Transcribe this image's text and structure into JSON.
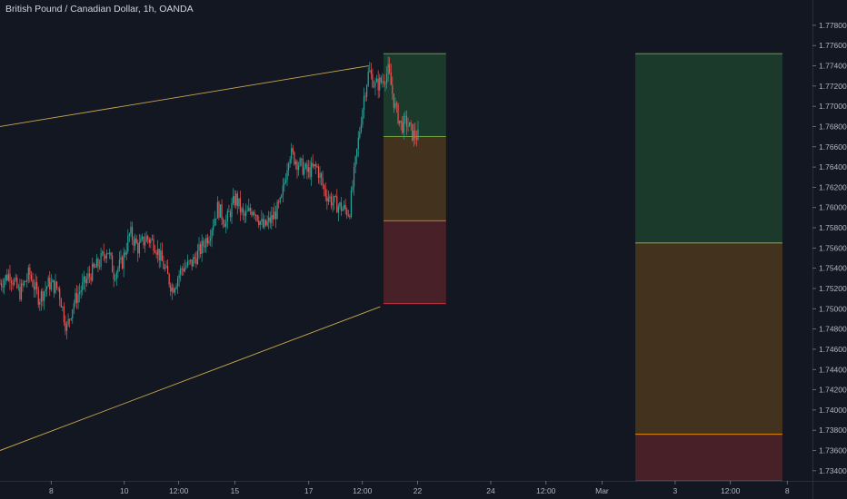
{
  "header": {
    "title": "British Pound / Canadian Dollar, 1h, OANDA"
  },
  "colors": {
    "background": "#131722",
    "up_candle": "#26a69a",
    "down_candle": "#ef5350",
    "trendline": "#c9a84c",
    "zone_green": "#1c3a2c",
    "zone_amber": "#43321d",
    "zone_red": "#472127",
    "line_green": "#8bc34a",
    "line_amber": "#ff9800",
    "line_red": "#f23645",
    "axis_text": "#b2b5be",
    "axis_border": "#2a2e39"
  },
  "chart_data": {
    "type": "candlestick",
    "symbol": "GBPCAD",
    "timeframe": "1h",
    "ylim": [
      1.733,
      1.7805
    ],
    "y_ticks": [
      1.734,
      1.736,
      1.738,
      1.74,
      1.742,
      1.744,
      1.746,
      1.748,
      1.75,
      1.752,
      1.754,
      1.756,
      1.758,
      1.76,
      1.762,
      1.764,
      1.766,
      1.768,
      1.77,
      1.772,
      1.774,
      1.776,
      1.778
    ],
    "y_tick_labels": [
      "1.73400",
      "1.73600",
      "1.73800",
      "1.74000",
      "1.74200",
      "1.74400",
      "1.74600",
      "1.74800",
      "1.75000",
      "1.75200",
      "1.75400",
      "1.75600",
      "1.75800",
      "1.76000",
      "1.76200",
      "1.76400",
      "1.76600",
      "1.76800",
      "1.77000",
      "1.77200",
      "1.77400",
      "1.77600",
      "1.77800"
    ],
    "x_ticks": [
      {
        "label": "8",
        "pos": 0.063
      },
      {
        "label": "10",
        "pos": 0.153
      },
      {
        "label": "12:00",
        "pos": 0.22
      },
      {
        "label": "15",
        "pos": 0.289
      },
      {
        "label": "17",
        "pos": 0.38
      },
      {
        "label": "12:00",
        "pos": 0.446
      },
      {
        "label": "22",
        "pos": 0.514
      },
      {
        "label": "24",
        "pos": 0.604
      },
      {
        "label": "12:00",
        "pos": 0.672
      },
      {
        "label": "Mar",
        "pos": 0.741
      },
      {
        "label": "3",
        "pos": 0.831
      },
      {
        "label": "12:00",
        "pos": 0.899
      },
      {
        "label": "8",
        "pos": 0.969
      }
    ],
    "candle_path": [
      [
        0.0,
        1.7525
      ],
      [
        0.012,
        1.7535
      ],
      [
        0.024,
        1.7515
      ],
      [
        0.036,
        1.7535
      ],
      [
        0.048,
        1.751
      ],
      [
        0.06,
        1.7525
      ],
      [
        0.072,
        1.752
      ],
      [
        0.082,
        1.748
      ],
      [
        0.09,
        1.7505
      ],
      [
        0.1,
        1.752
      ],
      [
        0.112,
        1.7535
      ],
      [
        0.122,
        1.7545
      ],
      [
        0.132,
        1.756
      ],
      [
        0.14,
        1.7535
      ],
      [
        0.15,
        1.7545
      ],
      [
        0.16,
        1.7575
      ],
      [
        0.17,
        1.756
      ],
      [
        0.18,
        1.757
      ],
      [
        0.19,
        1.7565
      ],
      [
        0.2,
        1.7545
      ],
      [
        0.212,
        1.752
      ],
      [
        0.224,
        1.754
      ],
      [
        0.236,
        1.7545
      ],
      [
        0.248,
        1.756
      ],
      [
        0.258,
        1.7575
      ],
      [
        0.268,
        1.76
      ],
      [
        0.278,
        1.7585
      ],
      [
        0.29,
        1.761
      ],
      [
        0.3,
        1.759
      ],
      [
        0.312,
        1.76
      ],
      [
        0.324,
        1.758
      ],
      [
        0.336,
        1.759
      ],
      [
        0.346,
        1.7605
      ],
      [
        0.356,
        1.7655
      ],
      [
        0.366,
        1.7645
      ],
      [
        0.378,
        1.7635
      ],
      [
        0.39,
        1.764
      ],
      [
        0.4,
        1.7615
      ],
      [
        0.41,
        1.7605
      ],
      [
        0.42,
        1.76
      ],
      [
        0.43,
        1.7595
      ],
      [
        0.44,
        1.766
      ],
      [
        0.448,
        1.771
      ],
      [
        0.454,
        1.7735
      ],
      [
        0.462,
        1.772
      ],
      [
        0.47,
        1.7725
      ],
      [
        0.478,
        1.7735
      ],
      [
        0.486,
        1.77
      ],
      [
        0.494,
        1.768
      ],
      [
        0.5,
        1.7685
      ],
      [
        0.508,
        1.7672
      ],
      [
        0.516,
        1.767
      ]
    ],
    "upper_trendline": {
      "from": [
        0.0,
        1.768
      ],
      "to": [
        0.454,
        1.774
      ]
    },
    "lower_trendline": {
      "from": [
        0.0,
        1.736
      ],
      "to": [
        0.468,
        1.7502
      ]
    },
    "position_boxes": [
      {
        "x_start": 0.472,
        "x_end": 0.549,
        "tp": 1.7752,
        "entry": 1.767,
        "stop": 1.7587,
        "sl": 1.7505
      },
      {
        "x_start": 0.782,
        "x_end": 0.963,
        "tp": 1.7752,
        "entry": 1.7565,
        "stop": 1.7376,
        "sl": 1.733
      }
    ]
  }
}
